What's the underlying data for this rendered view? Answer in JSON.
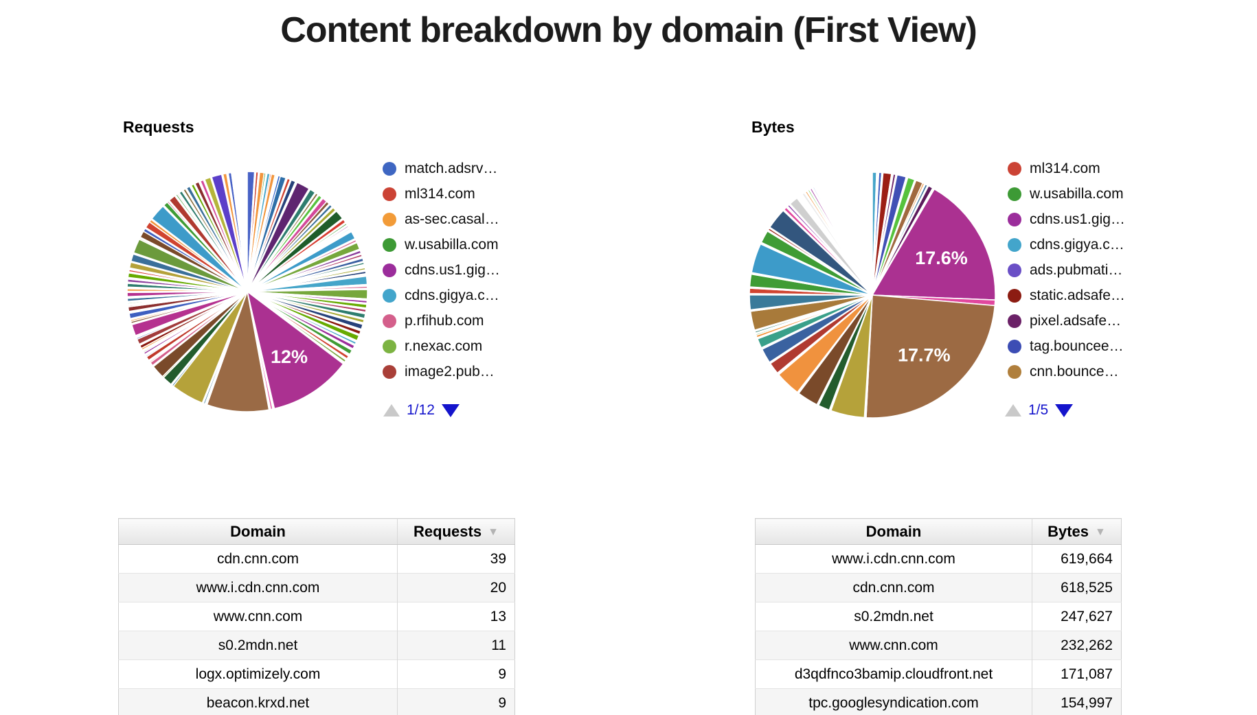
{
  "title": "Content breakdown by domain (First View)",
  "colors": {
    "pager_active": "#1414cc",
    "pager_inactive": "#c9c9c9",
    "slice_label_text": "#ffffff"
  },
  "chart_data": [
    {
      "type": "pie",
      "id": "requests",
      "section_label": "Requests",
      "legend_position": "right",
      "legend": [
        {
          "label": "match.adsrv…",
          "color": "#3e66c2"
        },
        {
          "label": "ml314.com",
          "color": "#cb4335"
        },
        {
          "label": "as-sec.casal…",
          "color": "#f29b38"
        },
        {
          "label": "w.usabilla.com",
          "color": "#3d9a35"
        },
        {
          "label": "cdns.us1.gig…",
          "color": "#9b2d9b"
        },
        {
          "label": "cdns.gigya.c…",
          "color": "#43a5cb"
        },
        {
          "label": "p.rfihub.com",
          "color": "#d45f8b"
        },
        {
          "label": "r.nexac.com",
          "color": "#7cb342"
        },
        {
          "label": "image2.pub…",
          "color": "#a93f38"
        }
      ],
      "pager": {
        "page_label": "1/12"
      },
      "visible_slice_labels": [
        "12%"
      ],
      "slices": [
        [
          3.5,
          "#4862c6"
        ],
        [
          0.6,
          "#ffffff"
        ],
        [
          1.2,
          "#d04330"
        ],
        [
          0.6,
          "#ffffff"
        ],
        [
          2.2,
          "#f2953c"
        ],
        [
          0.8,
          "#3f9c35"
        ],
        [
          0.6,
          "#ffffff"
        ],
        [
          1.4,
          "#45a5c9"
        ],
        [
          0.7,
          "#d63a2f"
        ],
        [
          1.8,
          "#f2953c"
        ],
        [
          0.6,
          "#56c23d"
        ],
        [
          0.9,
          "#ffffff"
        ],
        [
          1.1,
          "#3366cc"
        ],
        [
          2.8,
          "#2f6ea8"
        ],
        [
          0.7,
          "#ffffff"
        ],
        [
          1.5,
          "#d04330"
        ],
        [
          0.5,
          "#66aa00"
        ],
        [
          2.2,
          "#27427a"
        ],
        [
          0.8,
          "#ffffff"
        ],
        [
          6.5,
          "#5e2570"
        ],
        [
          0.6,
          "#ffffff"
        ],
        [
          2.8,
          "#2e7d6e"
        ],
        [
          0.5,
          "#f2953c"
        ],
        [
          1.2,
          "#8a6d3b"
        ],
        [
          0.5,
          "#ffffff"
        ],
        [
          1.8,
          "#56c23d"
        ],
        [
          0.6,
          "#ffffff"
        ],
        [
          2.4,
          "#d4489a"
        ],
        [
          1.6,
          "#8a5a3b"
        ],
        [
          0.5,
          "#ffffff"
        ],
        [
          1.5,
          "#3a6f9a"
        ],
        [
          0.6,
          "#ffffff"
        ],
        [
          1.8,
          "#a8a832"
        ],
        [
          0.5,
          "#ffffff"
        ],
        [
          4.5,
          "#1f5c2a"
        ],
        [
          0.6,
          "#ffffff"
        ],
        [
          1.8,
          "#d63a2f"
        ],
        [
          0.5,
          "#ffffff"
        ],
        [
          0.8,
          "#3f9c35"
        ],
        [
          0.6,
          "#ffffff"
        ],
        [
          0.7,
          "#9b2d9b"
        ],
        [
          0.8,
          "#ffffff"
        ],
        [
          0.6,
          "#45a5c9"
        ],
        [
          1.2,
          "#ffffff"
        ],
        [
          3.8,
          "#3d9bc9"
        ],
        [
          0.6,
          "#ffffff"
        ],
        [
          1.0,
          "#d45f8b"
        ],
        [
          0.5,
          "#ffffff"
        ],
        [
          3.4,
          "#76a73c"
        ],
        [
          0.6,
          "#ffffff"
        ],
        [
          1.4,
          "#8a3f9c"
        ],
        [
          0.6,
          "#ffffff"
        ],
        [
          1.1,
          "#b03a60"
        ],
        [
          0.8,
          "#ffffff"
        ],
        [
          1.6,
          "#3a5fa0"
        ],
        [
          0.5,
          "#ffffff"
        ],
        [
          1.0,
          "#2e7d6e"
        ],
        [
          1.6,
          "#ffffff"
        ],
        [
          1.0,
          "#a8a832"
        ],
        [
          0.7,
          "#ffffff"
        ],
        [
          1.2,
          "#27427a"
        ],
        [
          1.2,
          "#ffffff"
        ],
        [
          4.0,
          "#45a5c9"
        ],
        [
          0.8,
          "#ffffff"
        ],
        [
          1.0,
          "#d45f8b"
        ],
        [
          0.6,
          "#ffffff"
        ],
        [
          4.5,
          "#76a73c"
        ],
        [
          0.8,
          "#ffffff"
        ],
        [
          1.2,
          "#9b2d9b"
        ],
        [
          0.6,
          "#ffffff"
        ],
        [
          1.8,
          "#66aa00"
        ],
        [
          0.6,
          "#ffffff"
        ],
        [
          1.4,
          "#b03a60"
        ],
        [
          0.8,
          "#ffffff"
        ],
        [
          2.2,
          "#2e7d6e"
        ],
        [
          0.6,
          "#ffffff"
        ],
        [
          1.6,
          "#a8a832"
        ],
        [
          0.8,
          "#ffffff"
        ],
        [
          2.4,
          "#27427a"
        ],
        [
          0.8,
          "#ffffff"
        ],
        [
          1.8,
          "#8b1a10"
        ],
        [
          0.6,
          "#ffffff"
        ],
        [
          2.6,
          "#66aa00"
        ],
        [
          0.8,
          "#ffffff"
        ],
        [
          1.2,
          "#45a5c9"
        ],
        [
          0.6,
          "#ffffff"
        ],
        [
          1.8,
          "#9b2d9b"
        ],
        [
          0.8,
          "#ffffff"
        ],
        [
          2.2,
          "#3f9c35"
        ],
        [
          1.0,
          "#ffffff"
        ],
        [
          1.5,
          "#d04330"
        ],
        [
          0.8,
          "#ffffff"
        ],
        [
          1.2,
          "#76a73c"
        ],
        [
          1.0,
          "#ffffff"
        ],
        [
          40,
          "#ab3191",
          "12%"
        ],
        [
          0.8,
          "#ffffff"
        ],
        [
          1.0,
          "#e1479e"
        ],
        [
          0.8,
          "#ffffff"
        ],
        [
          30,
          "#9a6a45"
        ],
        [
          1.0,
          "#ffffff"
        ],
        [
          0.8,
          "#3a7a9a"
        ],
        [
          0.6,
          "#ffffff"
        ],
        [
          16,
          "#b5a23a"
        ],
        [
          0.8,
          "#3a7a9a"
        ],
        [
          0.6,
          "#ffffff"
        ],
        [
          4.8,
          "#235c2d"
        ],
        [
          0.7,
          "#a8a832"
        ],
        [
          6.5,
          "#7a4a2a"
        ],
        [
          0.6,
          "#ffffff"
        ],
        [
          1.8,
          "#d45f8b"
        ],
        [
          0.6,
          "#d63a2f"
        ],
        [
          0.7,
          "#ffffff"
        ],
        [
          2.0,
          "#c0392b"
        ],
        [
          0.6,
          "#3366cc"
        ],
        [
          0.8,
          "#ffffff"
        ],
        [
          1.0,
          "#9b2d9b"
        ],
        [
          0.6,
          "#3f9c35"
        ],
        [
          0.8,
          "#ffffff"
        ],
        [
          0.9,
          "#f2953c"
        ],
        [
          1.6,
          "#8b1a10"
        ],
        [
          0.6,
          "#ffffff"
        ],
        [
          2.6,
          "#a23c3c"
        ],
        [
          0.7,
          "#3e5fc0"
        ],
        [
          0.5,
          "#3f9c35"
        ],
        [
          0.7,
          "#ffffff"
        ],
        [
          5.5,
          "#b5318f"
        ],
        [
          0.6,
          "#ffffff"
        ],
        [
          1.0,
          "#8a5a3b"
        ],
        [
          0.8,
          "#f2953c"
        ],
        [
          0.6,
          "#ffffff"
        ],
        [
          2.6,
          "#3e5fc0"
        ],
        [
          0.9,
          "#ffffff"
        ],
        [
          2.2,
          "#8b2e2e"
        ],
        [
          0.6,
          "#d63a2f"
        ],
        [
          0.8,
          "#ffffff"
        ],
        [
          0.6,
          "#3f9c35"
        ],
        [
          0.6,
          "#ffffff"
        ],
        [
          1.5,
          "#3a6f9a"
        ],
        [
          0.8,
          "#ffffff"
        ],
        [
          2.0,
          "#b5318f"
        ],
        [
          0.6,
          "#ffffff"
        ],
        [
          1.2,
          "#f2953c"
        ],
        [
          0.8,
          "#ffffff"
        ],
        [
          1.8,
          "#2e7d6e"
        ],
        [
          0.6,
          "#ffffff"
        ],
        [
          1.4,
          "#8a3f9c"
        ],
        [
          0.8,
          "#ffffff"
        ],
        [
          2.2,
          "#66aa00"
        ],
        [
          0.6,
          "#ffffff"
        ],
        [
          1.0,
          "#d63a2f"
        ],
        [
          0.8,
          "#ffffff"
        ],
        [
          2.8,
          "#b5a23a"
        ],
        [
          0.5,
          "#ffffff"
        ],
        [
          3.6,
          "#3a6f9a"
        ],
        [
          0.6,
          "#ffffff"
        ],
        [
          7.0,
          "#6b9a3c"
        ],
        [
          0.6,
          "#b5a23a"
        ],
        [
          0.5,
          "#ffffff"
        ],
        [
          3.2,
          "#7a4a2a"
        ],
        [
          1.6,
          "#3e5fc0"
        ],
        [
          0.5,
          "#ffffff"
        ],
        [
          3.2,
          "#d04330"
        ],
        [
          1.4,
          "#f2953c"
        ],
        [
          0.5,
          "#ffffff"
        ],
        [
          8.0,
          "#3d9bc9"
        ],
        [
          0.6,
          "#ffffff"
        ],
        [
          2.2,
          "#3f9c35"
        ],
        [
          0.8,
          "#d45f8b"
        ],
        [
          0.5,
          "#ffffff"
        ],
        [
          3.4,
          "#b03a30"
        ],
        [
          0.6,
          "#ffffff"
        ],
        [
          0.8,
          "#3f9c35"
        ],
        [
          0.6,
          "#d45f8b"
        ],
        [
          0.6,
          "#ffffff"
        ],
        [
          1.5,
          "#2e7d6e"
        ],
        [
          0.8,
          "#ffffff"
        ],
        [
          1.2,
          "#8a6d3b"
        ],
        [
          0.6,
          "#ffffff"
        ],
        [
          1.8,
          "#3a6f9a"
        ],
        [
          0.8,
          "#ffffff"
        ],
        [
          1.4,
          "#66aa00"
        ],
        [
          0.6,
          "#ffffff"
        ],
        [
          2.0,
          "#8b2e2e"
        ],
        [
          0.8,
          "#ffffff"
        ],
        [
          1.6,
          "#d4489a"
        ],
        [
          0.6,
          "#ffffff"
        ],
        [
          3.0,
          "#b5b53a"
        ],
        [
          0.5,
          "#ffffff"
        ],
        [
          5.0,
          "#5b3fc9"
        ],
        [
          0.6,
          "#ffffff"
        ],
        [
          1.8,
          "#f2953c"
        ],
        [
          0.8,
          "#ffffff"
        ],
        [
          1.5,
          "#4862c6"
        ],
        [
          0.8,
          "#ffffff"
        ]
      ]
    },
    {
      "type": "pie",
      "id": "bytes",
      "section_label": "Bytes",
      "legend_position": "right",
      "legend": [
        {
          "label": "ml314.com",
          "color": "#cb4335"
        },
        {
          "label": "w.usabilla.com",
          "color": "#3d9a35"
        },
        {
          "label": "cdns.us1.gig…",
          "color": "#9b2d9b"
        },
        {
          "label": "cdns.gigya.c…",
          "color": "#43a5cb"
        },
        {
          "label": "ads.pubmati…",
          "color": "#6a4fc6"
        },
        {
          "label": "static.adsafe…",
          "color": "#8c1c12"
        },
        {
          "label": "pixel.adsafe…",
          "color": "#6b2167"
        },
        {
          "label": "tag.bouncee…",
          "color": "#3c4db4"
        },
        {
          "label": "cnn.bounce…",
          "color": "#b07f3c"
        }
      ],
      "pager": {
        "page_label": "1/5"
      },
      "visible_slice_labels": [
        "17.6%",
        "17.7%"
      ],
      "slices": [
        [
          2.0,
          "#45a5c9"
        ],
        [
          1.0,
          "#ffffff"
        ],
        [
          1.4,
          "#3e5fc0"
        ],
        [
          0.6,
          "#ffffff"
        ],
        [
          4.0,
          "#9c1f15"
        ],
        [
          0.8,
          "#ffffff"
        ],
        [
          1.2,
          "#6b2167"
        ],
        [
          0.6,
          "#ffffff"
        ],
        [
          4.4,
          "#4050b5"
        ],
        [
          0.8,
          "#ffffff"
        ],
        [
          3.4,
          "#56c23d"
        ],
        [
          0.6,
          "#ffffff"
        ],
        [
          3.4,
          "#a0683f"
        ],
        [
          0.9,
          "#f2953c"
        ],
        [
          0.5,
          "#ffffff"
        ],
        [
          1.1,
          "#3a6f9a"
        ],
        [
          0.5,
          "#ffffff"
        ],
        [
          2.2,
          "#5c1a5c"
        ],
        [
          0.9,
          "#ffffff"
        ],
        [
          62,
          "#ab3191",
          "17.6%"
        ],
        [
          2.6,
          "#e1479e"
        ],
        [
          88,
          "#9c6a43",
          "17.7%"
        ],
        [
          0.8,
          "#ffffff"
        ],
        [
          16,
          "#b5a23a"
        ],
        [
          0.8,
          "#ffffff"
        ],
        [
          5.5,
          "#235c2d"
        ],
        [
          0.8,
          "#ffffff"
        ],
        [
          10,
          "#7a4a2a"
        ],
        [
          0.8,
          "#ffffff"
        ],
        [
          12,
          "#f0923e"
        ],
        [
          1.0,
          "#ffffff"
        ],
        [
          5.5,
          "#b03a30"
        ],
        [
          0.7,
          "#ffffff"
        ],
        [
          7,
          "#3a62a0"
        ],
        [
          0.8,
          "#ffffff"
        ],
        [
          4.5,
          "#3aa08a"
        ],
        [
          0.6,
          "#ffffff"
        ],
        [
          1.2,
          "#f2953c"
        ],
        [
          0.6,
          "#3f9c35"
        ],
        [
          0.5,
          "#ffffff"
        ],
        [
          0.8,
          "#2e7d6e"
        ],
        [
          0.6,
          "#ffffff"
        ],
        [
          9,
          "#a87a3a"
        ],
        [
          0.7,
          "#ffffff"
        ],
        [
          7,
          "#3a7a9a"
        ],
        [
          0.6,
          "#ffffff"
        ],
        [
          2.5,
          "#d04330"
        ],
        [
          0.6,
          "#ffffff"
        ],
        [
          6,
          "#3f9c35"
        ],
        [
          0.8,
          "#ffffff"
        ],
        [
          14,
          "#3d9bc9"
        ],
        [
          0.8,
          "#ffffff"
        ],
        [
          6,
          "#3f9c35"
        ],
        [
          0.6,
          "#ffffff"
        ],
        [
          1.0,
          "#9c1f15"
        ],
        [
          0.5,
          "#ffffff"
        ],
        [
          10,
          "#33567e"
        ],
        [
          0.6,
          "#ffffff"
        ],
        [
          1.5,
          "#e1479e"
        ],
        [
          0.8,
          "#ffffff"
        ],
        [
          1.0,
          "#8e44ad"
        ],
        [
          0.6,
          "#ffffff"
        ],
        [
          4.2,
          "#cfcfcf"
        ],
        [
          3.0,
          "#ffffff"
        ],
        [
          1.2,
          "#e8e8e8"
        ],
        [
          0.6,
          "#ffffff"
        ],
        [
          0.8,
          "#f2953c"
        ],
        [
          0.6,
          "#ffffff"
        ],
        [
          0.7,
          "#56c23d"
        ],
        [
          0.5,
          "#ffffff"
        ],
        [
          0.8,
          "#9b2d9b"
        ],
        [
          0.7,
          "#ffffff"
        ],
        [
          0.6,
          "#3366cc"
        ],
        [
          2.0,
          "#ffffff"
        ],
        [
          12,
          "#ffffff"
        ]
      ]
    },
    {
      "type": "table",
      "id": "requests_table",
      "headers": [
        "Domain",
        "Requests"
      ],
      "sort": {
        "column": "Requests",
        "direction": "desc",
        "icon": "▼"
      },
      "rows": [
        [
          "cdn.cnn.com",
          "39"
        ],
        [
          "www.i.cdn.cnn.com",
          "20"
        ],
        [
          "www.cnn.com",
          "13"
        ],
        [
          "s0.2mdn.net",
          "11"
        ],
        [
          "logx.optimizely.com",
          "9"
        ],
        [
          "beacon.krxd.net",
          "9"
        ]
      ]
    },
    {
      "type": "table",
      "id": "bytes_table",
      "headers": [
        "Domain",
        "Bytes"
      ],
      "sort": {
        "column": "Bytes",
        "direction": "desc",
        "icon": "▼"
      },
      "rows": [
        [
          "www.i.cdn.cnn.com",
          "619,664"
        ],
        [
          "cdn.cnn.com",
          "618,525"
        ],
        [
          "s0.2mdn.net",
          "247,627"
        ],
        [
          "www.cnn.com",
          "232,262"
        ],
        [
          "d3qdfnco3bamip.cloudfront.net",
          "171,087"
        ],
        [
          "tpc.googlesyndication.com",
          "154,997"
        ]
      ]
    }
  ]
}
